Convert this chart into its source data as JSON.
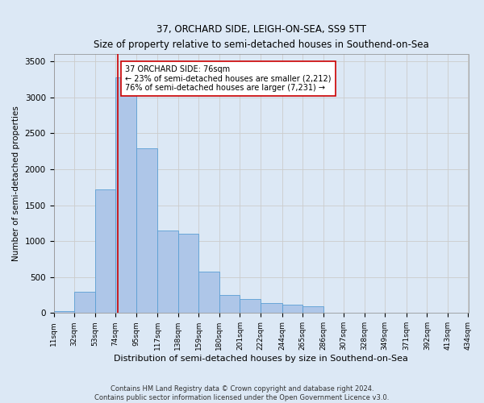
{
  "title": "37, ORCHARD SIDE, LEIGH-ON-SEA, SS9 5TT",
  "subtitle": "Size of property relative to semi-detached houses in Southend-on-Sea",
  "xlabel": "Distribution of semi-detached houses by size in Southend-on-Sea",
  "ylabel": "Number of semi-detached properties",
  "footer_line1": "Contains HM Land Registry data © Crown copyright and database right 2024.",
  "footer_line2": "Contains public sector information licensed under the Open Government Licence v3.0.",
  "property_size": 76,
  "annotation_text": "37 ORCHARD SIDE: 76sqm\n← 23% of semi-detached houses are smaller (2,212)\n76% of semi-detached houses are larger (7,231) →",
  "bin_edges": [
    11,
    32,
    53,
    74,
    95,
    117,
    138,
    159,
    180,
    201,
    222,
    244,
    265,
    286,
    307,
    328,
    349,
    371,
    392,
    413,
    434
  ],
  "bar_heights": [
    30,
    290,
    1720,
    3280,
    2290,
    1150,
    1100,
    580,
    250,
    200,
    140,
    120,
    90,
    0,
    0,
    0,
    0,
    0,
    0,
    0
  ],
  "bar_color": "#aec6e8",
  "bar_edge_color": "#5a9fd4",
  "vline_color": "#cc0000",
  "annotation_box_color": "#ffffff",
  "annotation_box_edge": "#cc0000",
  "grid_color": "#cccccc",
  "background_color": "#dce8f5",
  "ylim": [
    0,
    3600
  ],
  "yticks": [
    0,
    500,
    1000,
    1500,
    2000,
    2500,
    3000,
    3500
  ]
}
